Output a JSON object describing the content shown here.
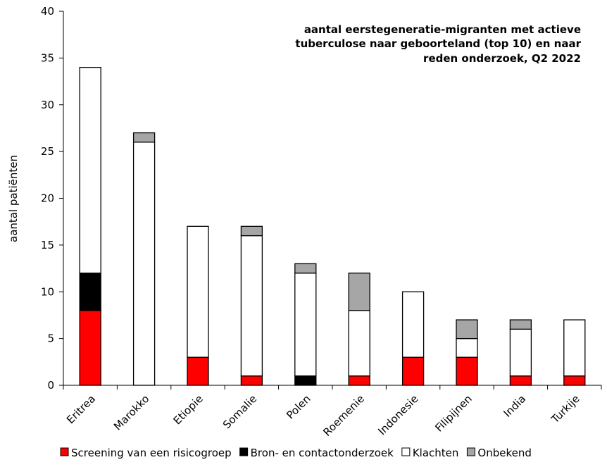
{
  "chart_data": {
    "type": "bar",
    "stacked": true,
    "title_lines": [
      "aantal eerstegeneratie-migranten met actieve",
      "tuberculose naar geboorteland (top 10) en naar",
      "reden onderzoek, Q2 2022"
    ],
    "ylabel": "aantal patiënten",
    "xlabel": "",
    "ylim": [
      0,
      40
    ],
    "yticks": [
      0,
      5,
      10,
      15,
      20,
      25,
      30,
      35,
      40
    ],
    "grid": false,
    "legend_position": "bottom",
    "categories": [
      "Eritrea",
      "Marokko",
      "Etiopie",
      "Somalie",
      "Polen",
      "Roemenie",
      "Indonesie",
      "Filipijnen",
      "India",
      "Turkije"
    ],
    "series": [
      {
        "name": "Screening van een risicogroep",
        "color": "#ff0000",
        "values": [
          8,
          0,
          3,
          1,
          0,
          1,
          3,
          3,
          1,
          1
        ]
      },
      {
        "name": "Bron- en contactonderzoek",
        "color": "#000000",
        "values": [
          4,
          0,
          0,
          0,
          1,
          0,
          0,
          0,
          0,
          0
        ]
      },
      {
        "name": "Klachten",
        "color": "#ffffff",
        "values": [
          22,
          26,
          14,
          15,
          11,
          7,
          7,
          2,
          5,
          6
        ]
      },
      {
        "name": "Onbekend",
        "color": "#a6a6a6",
        "values": [
          0,
          1,
          0,
          1,
          1,
          4,
          0,
          2,
          1,
          0
        ]
      }
    ]
  }
}
